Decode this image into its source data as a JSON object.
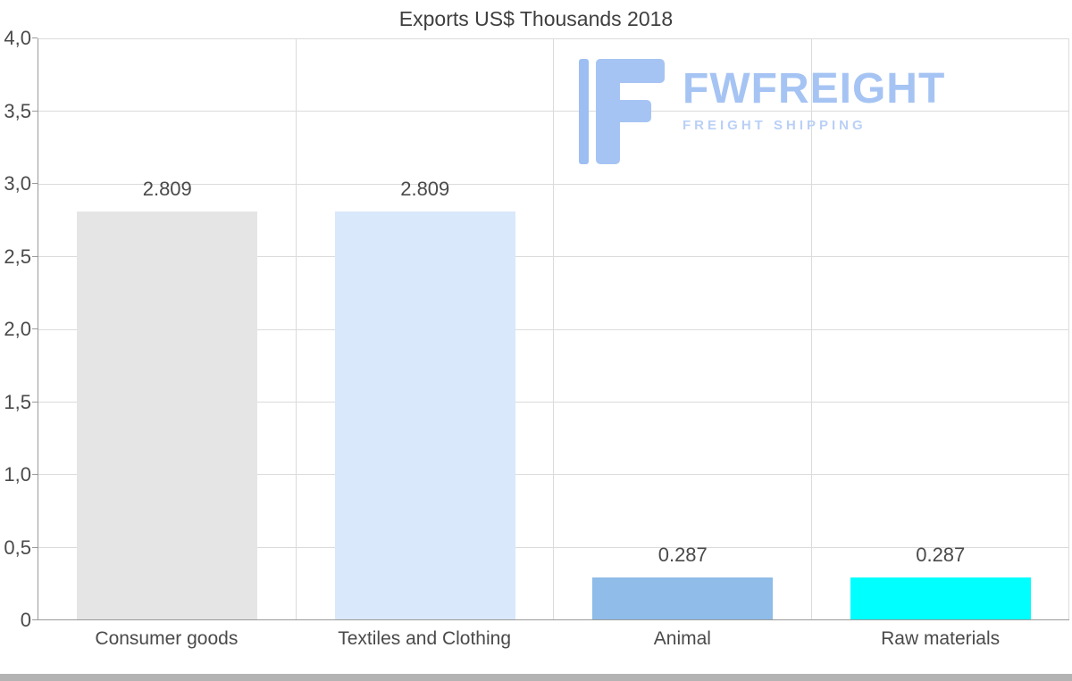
{
  "chart_data": {
    "type": "bar",
    "title": "Exports US$ Thousands 2018",
    "categories": [
      "Consumer goods",
      "Textiles and Clothing",
      "Animal",
      "Raw materials"
    ],
    "values": [
      2.809,
      2.809,
      0.287,
      0.287
    ],
    "value_labels": [
      "2.809",
      "2.809",
      "0.287",
      "0.287"
    ],
    "bar_colors": [
      "#e5e5e5",
      "#d9e8fa",
      "#8fbce8",
      "#00ffff"
    ],
    "ylim": [
      0,
      4
    ],
    "yticks": [
      {
        "value": 4,
        "label": "4,0"
      },
      {
        "value": 3.5,
        "label": "3,5"
      },
      {
        "value": 3,
        "label": "3,0"
      },
      {
        "value": 2.5,
        "label": "2,5"
      },
      {
        "value": 2,
        "label": "2,0"
      },
      {
        "value": 1.5,
        "label": "1,5"
      },
      {
        "value": 1,
        "label": "1,0"
      },
      {
        "value": 0.5,
        "label": "0,5"
      },
      {
        "value": 0,
        "label": "0"
      }
    ],
    "grid": "both",
    "legend": "none",
    "xlabel": "",
    "ylabel": ""
  },
  "watermark": {
    "brand": "FWFREIGHT",
    "subtitle": "FREIGHT SHIPPING",
    "color": "#a6c4f3"
  }
}
